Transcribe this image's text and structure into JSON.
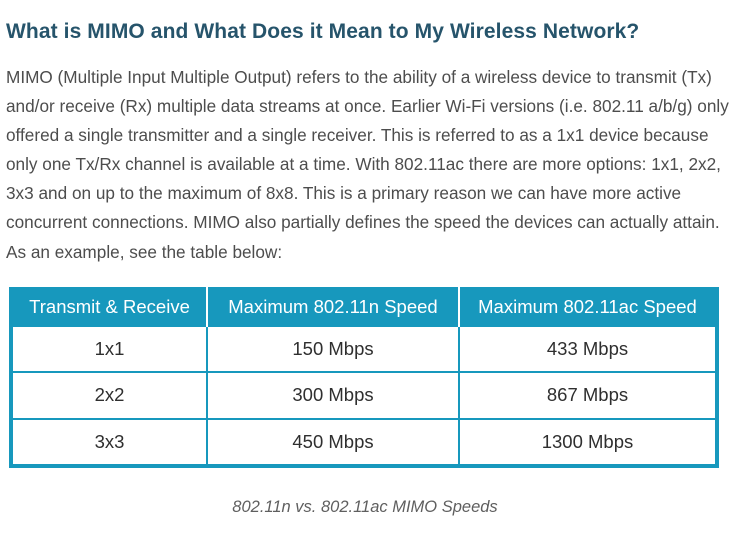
{
  "article": {
    "heading": "What is MIMO and What Does it Mean to My Wireless Network?",
    "paragraph": "MIMO (Multiple Input Multiple Output) refers to the ability of a wireless device to transmit (Tx) and/or receive (Rx) multiple data streams at once. Earlier Wi-Fi versions (i.e. 802.11 a/b/g) only offered a single transmitter and a single receiver. This is referred to as a 1x1 device because only one Tx/Rx channel is available at a time. With 802.11ac there are more options: 1x1, 2x2, 3x3 and on up to the maximum of 8x8. This is a primary reason we can have more active concurrent connections. MIMO also partially defines the speed the devices can actually attain. As an example, see the table below:"
  },
  "table": {
    "headers": [
      "Transmit & Receive",
      "Maximum 802.11n Speed",
      "Maximum 802.11ac Speed"
    ],
    "rows": [
      [
        "1x1",
        "150 Mbps",
        "433 Mbps"
      ],
      [
        "2x2",
        "300 Mbps",
        "867 Mbps"
      ],
      [
        "3x3",
        "450 Mbps",
        "1300 Mbps"
      ]
    ],
    "caption": "802.11n vs. 802.11ac MIMO Speeds"
  },
  "colors": {
    "heading": "#26546b",
    "table_accent": "#1798bd",
    "body_text": "#4d4d4d"
  }
}
